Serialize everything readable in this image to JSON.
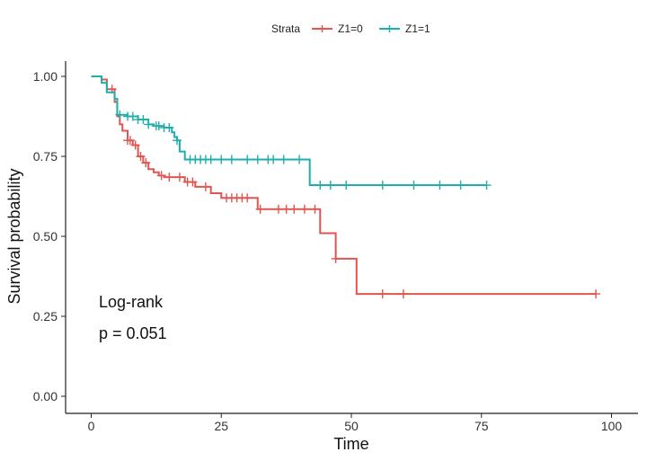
{
  "chart_data": {
    "type": "line",
    "subtype": "kaplan-meier step",
    "xlabel": "Time",
    "ylabel": "Survival probability",
    "xlim": [
      -5,
      105
    ],
    "ylim": [
      -0.05,
      1.05
    ],
    "xticks": [
      0,
      25,
      50,
      75,
      100
    ],
    "xtick_labels": [
      "0",
      "25",
      "50",
      "75",
      "100"
    ],
    "yticks": [
      0,
      0.25,
      0.5,
      0.75,
      1.0
    ],
    "ytick_labels": [
      "0.00",
      "0.25",
      "0.50",
      "0.75",
      "1.00"
    ],
    "grid": false,
    "legend": {
      "position": "top",
      "title": "Strata",
      "entries": [
        "Z1=0",
        "Z1=1"
      ]
    },
    "annotations": {
      "test": "Log-rank",
      "pvalue": "p = 0.051"
    },
    "series": [
      {
        "name": "Z1=0",
        "color": "#E0554F",
        "steps": [
          [
            0,
            1.0
          ],
          [
            2,
            0.99
          ],
          [
            3,
            0.96
          ],
          [
            4.5,
            0.92
          ],
          [
            5,
            0.875
          ],
          [
            5.5,
            0.85
          ],
          [
            6,
            0.83
          ],
          [
            7,
            0.8
          ],
          [
            8,
            0.785
          ],
          [
            9,
            0.75
          ],
          [
            10,
            0.73
          ],
          [
            11,
            0.71
          ],
          [
            12,
            0.7
          ],
          [
            13,
            0.69
          ],
          [
            14,
            0.685
          ],
          [
            18,
            0.67
          ],
          [
            20,
            0.655
          ],
          [
            23,
            0.635
          ],
          [
            25,
            0.62
          ],
          [
            32,
            0.585
          ],
          [
            44,
            0.51
          ],
          [
            47,
            0.43
          ],
          [
            51,
            0.32
          ],
          [
            97,
            0.32
          ]
        ],
        "censor_x": [
          4,
          7,
          7.5,
          8.5,
          9.5,
          10.5,
          13.5,
          15,
          17,
          18.5,
          19.5,
          22,
          26,
          27,
          28,
          29,
          30,
          32.5,
          36,
          37.5,
          39,
          41,
          43,
          47,
          56,
          60,
          97
        ]
      },
      {
        "name": "Z1=1",
        "color": "#1FAFAA",
        "steps": [
          [
            0,
            1.0
          ],
          [
            2,
            0.98
          ],
          [
            3,
            0.95
          ],
          [
            4.5,
            0.93
          ],
          [
            5,
            0.88
          ],
          [
            7,
            0.875
          ],
          [
            9,
            0.865
          ],
          [
            11,
            0.85
          ],
          [
            12,
            0.845
          ],
          [
            14,
            0.84
          ],
          [
            15.5,
            0.825
          ],
          [
            16,
            0.81
          ],
          [
            16.5,
            0.8
          ],
          [
            17,
            0.765
          ],
          [
            18,
            0.74
          ],
          [
            42,
            0.66
          ],
          [
            76,
            0.66
          ]
        ],
        "censor_x": [
          5.5,
          7,
          8,
          9,
          10,
          11,
          12.5,
          13,
          14,
          15,
          16.5,
          19,
          20,
          21,
          22,
          23,
          25,
          27,
          30,
          32,
          34,
          35,
          37,
          40,
          44,
          46,
          49,
          56,
          62,
          67,
          71,
          76
        ]
      }
    ]
  }
}
